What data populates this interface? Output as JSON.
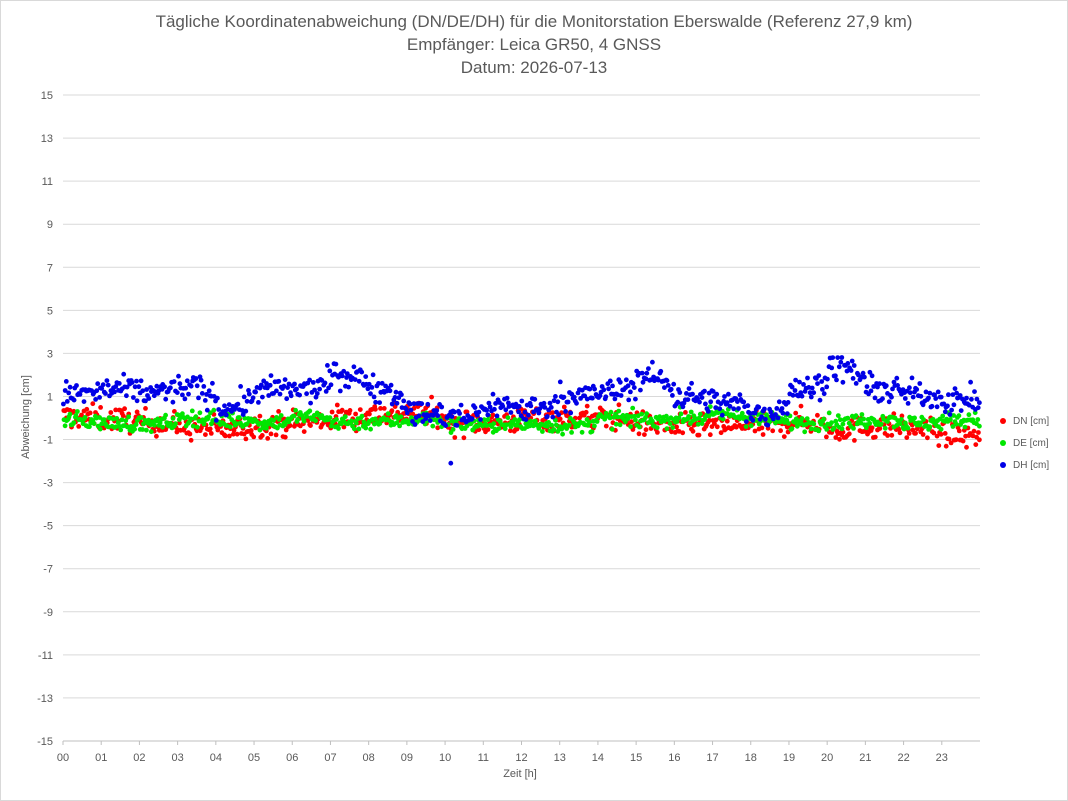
{
  "chart_data": {
    "type": "scatter",
    "title_lines": [
      "Tägliche Koordinatenabweichung (DN/DE/DH) für die Monitorstation Eberswalde (Referenz 27,9 km)",
      "Empfänger: Leica GR50, 4 GNSS",
      "Datum: 2026-07-13"
    ],
    "xlabel": "Zeit [h]",
    "ylabel": "Abweichung [cm]",
    "xlim": [
      0,
      24
    ],
    "ylim": [
      -15,
      15
    ],
    "x_tick_labels": [
      "00",
      "01",
      "02",
      "03",
      "04",
      "05",
      "06",
      "07",
      "08",
      "09",
      "10",
      "11",
      "12",
      "13",
      "14",
      "15",
      "16",
      "17",
      "18",
      "19",
      "20",
      "21",
      "22",
      "23"
    ],
    "y_tick_labels": [
      "15",
      "13",
      "11",
      "9",
      "7",
      "5",
      "3",
      "1",
      "-1",
      "-3",
      "-5",
      "-7",
      "-9",
      "-11",
      "-13",
      "-15"
    ],
    "grid": "horizontal",
    "legend_position": "right",
    "points_per_hour": 30,
    "series": [
      {
        "name": "DN [cm]",
        "color": "#ff0000",
        "hourly_means": [
          0.05,
          -0.05,
          -0.2,
          -0.45,
          -0.55,
          -0.3,
          -0.2,
          0.0,
          0.2,
          0.3,
          -0.2,
          -0.2,
          0.0,
          0.0,
          0.0,
          -0.3,
          -0.4,
          -0.35,
          -0.35,
          -0.15,
          -0.55,
          -0.4,
          -0.5,
          -0.8
        ],
        "spread": 0.28
      },
      {
        "name": "DE [cm]",
        "color": "#00e600",
        "hourly_means": [
          -0.1,
          -0.25,
          -0.3,
          0.0,
          -0.1,
          -0.2,
          0.05,
          -0.2,
          -0.15,
          -0.05,
          -0.3,
          -0.3,
          -0.3,
          -0.4,
          -0.05,
          -0.1,
          0.0,
          0.15,
          -0.1,
          -0.2,
          -0.2,
          -0.05,
          -0.25,
          -0.1
        ],
        "spread": 0.18
      },
      {
        "name": "DH [cm]",
        "color": "#0000e6",
        "hourly_means": [
          1.1,
          1.3,
          1.2,
          1.4,
          0.5,
          1.3,
          1.3,
          2.0,
          1.4,
          0.2,
          0.0,
          0.6,
          0.4,
          1.0,
          1.2,
          1.9,
          1.0,
          0.7,
          0.2,
          1.3,
          2.3,
          1.3,
          1.1,
          0.8
        ],
        "spread": 0.3,
        "outliers": [
          {
            "x": 10.15,
            "y": -2.1
          }
        ]
      }
    ]
  }
}
